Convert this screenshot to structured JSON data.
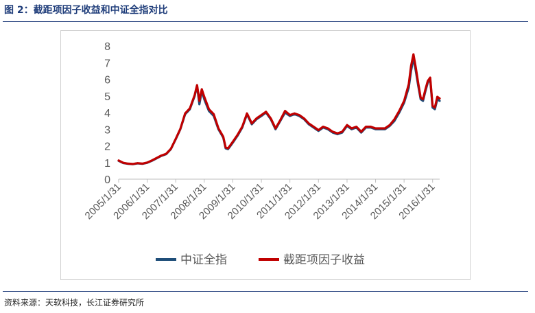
{
  "figure": {
    "title": "图 2：截距项因子收益和中证全指对比",
    "source": "资料来源：天软科技，长江证券研究所"
  },
  "colors": {
    "title_blue": "#1f3d7a",
    "series_index": "#1f4e79",
    "series_factor": "#c00000",
    "axis_text": "#595959",
    "axis_line": "#bfbfbf"
  },
  "chart_data": {
    "type": "line",
    "title": "",
    "xlabel": "",
    "ylabel": "",
    "ylim": [
      0,
      8
    ],
    "yticks": [
      0,
      1,
      2,
      3,
      4,
      5,
      6,
      7,
      8
    ],
    "grid": false,
    "legend_position": "bottom",
    "x_tick_labels": [
      "2005/1/31",
      "2006/1/31",
      "2007/1/31",
      "2008/1/31",
      "2009/1/31",
      "2010/1/31",
      "2011/1/31",
      "2012/1/31",
      "2013/1/31",
      "2014/1/31",
      "2015/1/31",
      "2016/1/31"
    ],
    "x": [
      "2005/1/31",
      "2005/3/31",
      "2005/5/31",
      "2005/7/31",
      "2005/9/30",
      "2005/11/30",
      "2006/1/31",
      "2006/3/31",
      "2006/5/31",
      "2006/7/31",
      "2006/9/30",
      "2006/11/30",
      "2007/1/31",
      "2007/3/31",
      "2007/5/31",
      "2007/7/31",
      "2007/9/30",
      "2007/10/31",
      "2007/11/30",
      "2007/12/31",
      "2008/1/31",
      "2008/3/31",
      "2008/5/31",
      "2008/7/31",
      "2008/9/30",
      "2008/10/31",
      "2008/11/30",
      "2008/12/31",
      "2009/1/31",
      "2009/3/31",
      "2009/5/31",
      "2009/7/31",
      "2009/9/30",
      "2009/11/30",
      "2010/1/31",
      "2010/3/31",
      "2010/5/31",
      "2010/7/31",
      "2010/9/30",
      "2010/11/30",
      "2011/1/31",
      "2011/3/31",
      "2011/5/31",
      "2011/7/31",
      "2011/9/30",
      "2011/11/30",
      "2012/1/31",
      "2012/3/31",
      "2012/5/31",
      "2012/7/31",
      "2012/9/30",
      "2012/11/30",
      "2013/1/31",
      "2013/3/31",
      "2013/5/31",
      "2013/7/31",
      "2013/9/30",
      "2013/11/30",
      "2014/1/31",
      "2014/3/31",
      "2014/5/31",
      "2014/7/31",
      "2014/9/30",
      "2014/11/30",
      "2015/1/31",
      "2015/3/31",
      "2015/4/30",
      "2015/5/31",
      "2015/6/30",
      "2015/7/31",
      "2015/8/31",
      "2015/9/30",
      "2015/10/31",
      "2015/11/30",
      "2015/12/31",
      "2016/1/31",
      "2016/2/29",
      "2016/3/31",
      "2016/4/30"
    ],
    "series": [
      {
        "name": "中证全指",
        "values": [
          1.1,
          0.97,
          0.92,
          0.9,
          0.95,
          0.92,
          0.98,
          1.1,
          1.25,
          1.4,
          1.5,
          1.8,
          2.4,
          3.0,
          3.9,
          4.2,
          5.0,
          5.6,
          4.5,
          5.3,
          4.8,
          4.1,
          3.8,
          3.0,
          2.5,
          1.85,
          1.8,
          2.0,
          2.2,
          2.6,
          3.1,
          3.9,
          3.3,
          3.6,
          3.8,
          4.0,
          3.6,
          3.0,
          3.5,
          4.0,
          3.8,
          3.9,
          3.8,
          3.6,
          3.3,
          3.1,
          2.9,
          3.1,
          3.0,
          2.8,
          2.7,
          2.8,
          3.2,
          3.0,
          3.1,
          2.8,
          3.1,
          3.1,
          3.0,
          3.0,
          3.0,
          3.2,
          3.5,
          4.0,
          4.6,
          5.5,
          6.5,
          7.3,
          6.5,
          5.6,
          4.8,
          4.7,
          5.3,
          5.8,
          6.0,
          4.3,
          4.2,
          4.8,
          4.7
        ]
      },
      {
        "name": "截距项因子收益",
        "values": [
          1.12,
          0.98,
          0.93,
          0.91,
          0.96,
          0.93,
          1.0,
          1.12,
          1.27,
          1.42,
          1.52,
          1.82,
          2.42,
          3.02,
          3.95,
          4.25,
          5.05,
          5.65,
          4.7,
          5.4,
          4.95,
          4.2,
          3.9,
          3.05,
          2.55,
          1.9,
          1.85,
          2.05,
          2.25,
          2.65,
          3.15,
          3.95,
          3.35,
          3.65,
          3.85,
          4.05,
          3.65,
          3.05,
          3.55,
          4.1,
          3.85,
          3.95,
          3.85,
          3.65,
          3.35,
          3.15,
          2.95,
          3.15,
          3.05,
          2.85,
          2.75,
          2.85,
          3.25,
          3.05,
          3.15,
          2.85,
          3.15,
          3.15,
          3.05,
          3.05,
          3.05,
          3.25,
          3.6,
          4.1,
          4.7,
          5.7,
          6.8,
          7.5,
          6.7,
          5.75,
          4.9,
          4.8,
          5.4,
          5.9,
          6.1,
          4.4,
          4.3,
          4.95,
          4.85
        ]
      }
    ]
  }
}
